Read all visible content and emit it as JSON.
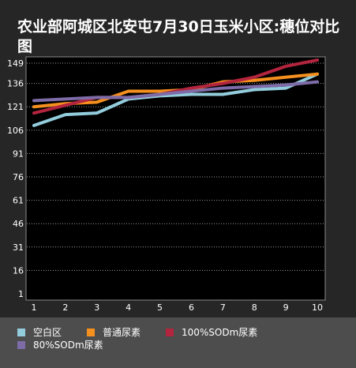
{
  "chart_data": {
    "type": "line",
    "title": "农业部阿城区北安屯7月30日玉米小区:穗位对比图",
    "x": [
      1,
      2,
      3,
      4,
      5,
      6,
      7,
      8,
      9,
      10
    ],
    "xticks": [
      "1",
      "2",
      "3",
      "4",
      "5",
      "6",
      "7",
      "8",
      "9",
      "10"
    ],
    "yticks": [
      "1",
      "16",
      "31",
      "46",
      "61",
      "76",
      "91",
      "106",
      "121",
      "136",
      "149"
    ],
    "ylim": [
      1,
      149
    ],
    "grid": "horizontal dotted",
    "legend_position": "bottom",
    "series": [
      {
        "name": "空白区",
        "color": "#93cddd",
        "values": [
          109,
          116,
          117,
          126,
          128,
          129,
          129,
          132,
          133,
          142
        ]
      },
      {
        "name": "普通尿素",
        "color": "#f5901f",
        "values": [
          121,
          123,
          124,
          131,
          131,
          132,
          137,
          138,
          140,
          142
        ]
      },
      {
        "name": "100%SODm尿素",
        "color": "#b3253e",
        "values": [
          117,
          122,
          127,
          127,
          129,
          133,
          136,
          140,
          147,
          151
        ]
      },
      {
        "name": "80%SODm尿素",
        "color": "#7d6ca8",
        "values": [
          125,
          126,
          127,
          127,
          129,
          131,
          133,
          134,
          135,
          137
        ]
      }
    ]
  }
}
